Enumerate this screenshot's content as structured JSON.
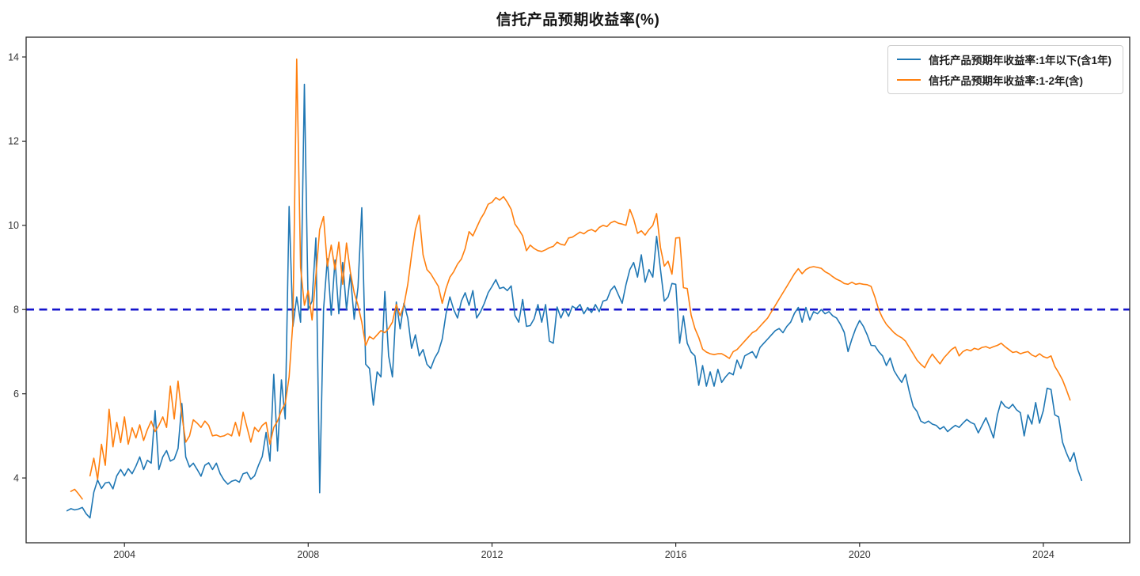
{
  "chart_data": {
    "type": "line",
    "title": "信托产品预期收益率(%)",
    "xlabel": "",
    "ylabel": "",
    "x_domain": [
      2001.86,
      2025.88
    ],
    "y_domain": [
      2.46,
      14.47
    ],
    "x_ticks": [
      2004,
      2008,
      2012,
      2016,
      2020,
      2024
    ],
    "y_ticks": [
      4,
      6,
      8,
      10,
      12,
      14
    ],
    "grid": false,
    "legend_position": "upper right",
    "frame_color": "#2a2a2a",
    "tick_label_color": "#333333",
    "hline": {
      "y": 8.0,
      "color": "#1414cc",
      "dash": [
        10,
        6.5
      ],
      "width": 2.6
    },
    "series": [
      {
        "name": "信托产品预期年收益率:1年以下(含1年)",
        "color": "#1f77b4",
        "width": 1.6,
        "segments": [
          {
            "x0": 2002.75,
            "step_years": 0.08333,
            "values": [
              3.22,
              3.27,
              3.24,
              3.26,
              3.3,
              3.15,
              3.05,
              3.66,
              3.95,
              3.75,
              3.88,
              3.9,
              3.74,
              4.05,
              4.2,
              4.05,
              4.22,
              4.1,
              4.28,
              4.5,
              4.2,
              4.42,
              4.35,
              5.6,
              4.2,
              4.5,
              4.65,
              4.4,
              4.45,
              4.7,
              5.77,
              4.5,
              4.26,
              4.35,
              4.2,
              4.04,
              4.3,
              4.36,
              4.2,
              4.35,
              4.1,
              3.95,
              3.85,
              3.92,
              3.95,
              3.9,
              4.1,
              4.13,
              3.97,
              4.05,
              4.3,
              4.51,
              5.08,
              4.4,
              6.46,
              4.64,
              6.33,
              5.4,
              10.45,
              7.6,
              8.3,
              7.7,
              13.35,
              8.0,
              8.2,
              9.7,
              3.65,
              8.0,
              9.21,
              7.87,
              9.18,
              7.9,
              9.12,
              8.0,
              8.84,
              7.77,
              8.53,
              10.42,
              6.7,
              6.6,
              5.73,
              6.52,
              6.4,
              8.43,
              6.9,
              6.4,
              8.18,
              7.54,
              8.15,
              7.8,
              7.08,
              7.4,
              6.9,
              7.05,
              6.7,
              6.6,
              6.84,
              7.0,
              7.3,
              7.9,
              8.3,
              8.0,
              7.8,
              8.2,
              8.4,
              8.1,
              8.45,
              7.8,
              7.95,
              8.15,
              8.4,
              8.55,
              8.71,
              8.5,
              8.53,
              8.45,
              8.56,
              7.86,
              7.7,
              8.24,
              7.6,
              7.62,
              7.78,
              8.12,
              7.7,
              8.12,
              7.25,
              7.2,
              8.06,
              7.8,
              8.02,
              7.84,
              8.08,
              8.02,
              8.12,
              7.9,
              8.05,
              7.93,
              8.12,
              7.95,
              8.2,
              8.23,
              8.46,
              8.56,
              8.35,
              8.15,
              8.59,
              8.95,
              9.12,
              8.77,
              9.3,
              8.65,
              8.95,
              8.77,
              9.74,
              8.95,
              8.2,
              8.3,
              8.62,
              8.6,
              7.2,
              7.85,
              7.2,
              6.99,
              6.9,
              6.2,
              6.67,
              6.18,
              6.52,
              6.18,
              6.58,
              6.27,
              6.4,
              6.5,
              6.45,
              6.8,
              6.6,
              6.9,
              6.95,
              7.0,
              6.85,
              7.1,
              7.2,
              7.3,
              7.4,
              7.5,
              7.55,
              7.45,
              7.6,
              7.7,
              7.91,
              8.05,
              7.7,
              8.05,
              7.75,
              7.95,
              7.9,
              8.0,
              7.9,
              7.95,
              7.85,
              7.8,
              7.65,
              7.46,
              7.0,
              7.3,
              7.55,
              7.74,
              7.6,
              7.4,
              7.15,
              7.14,
              7.0,
              6.9,
              6.67,
              6.85,
              6.55,
              6.4,
              6.27,
              6.46,
              6.05,
              5.7,
              5.58,
              5.35,
              5.3,
              5.35,
              5.28,
              5.25,
              5.16,
              5.22,
              5.1,
              5.18,
              5.25,
              5.2,
              5.3,
              5.39,
              5.32,
              5.28,
              5.07,
              5.25,
              5.43,
              5.2,
              4.95,
              5.5,
              5.82,
              5.7,
              5.65,
              5.75,
              5.62,
              5.55,
              5.0,
              5.5,
              5.28,
              5.79,
              5.3,
              5.6,
              6.13,
              6.1,
              5.5,
              5.45,
              4.85,
              4.6,
              4.39,
              4.6,
              4.2,
              3.94
            ]
          }
        ]
      },
      {
        "name": "信托产品预期年收益率:1-2年(含)",
        "color": "#ff7f0e",
        "width": 1.6,
        "segments": [
          {
            "x0": 2002.8333,
            "step_years": 0.08333,
            "values": [
              3.68,
              3.73,
              3.62,
              3.5
            ]
          },
          {
            "x0": 2003.25,
            "step_years": 0.08333,
            "values": [
              4.05,
              4.47,
              3.97,
              4.8,
              4.3,
              5.63,
              4.74,
              5.32,
              4.84,
              5.45,
              4.8,
              5.19,
              4.95,
              5.26,
              4.89,
              5.15,
              5.35,
              5.1,
              5.25,
              5.45,
              5.2,
              6.18,
              5.4,
              6.3,
              5.5,
              4.85,
              5.0,
              5.38,
              5.3,
              5.2,
              5.35,
              5.25,
              5.0,
              5.02,
              4.98,
              5.0,
              5.05,
              5.0,
              5.32,
              5.0,
              5.56,
              5.2,
              4.85,
              5.2,
              5.1,
              5.25,
              5.32,
              4.8,
              5.2,
              5.35,
              5.6,
              5.77,
              6.4,
              7.7,
              13.95,
              9.0,
              8.1,
              8.45,
              7.75,
              8.8,
              9.9,
              10.21,
              9.03,
              9.53,
              8.95,
              9.6,
              8.6,
              9.58,
              8.9,
              8.4,
              8.1,
              7.7,
              7.15,
              7.36,
              7.3,
              7.4,
              7.5,
              7.45,
              7.55,
              7.7,
              8.12,
              7.85,
              8.1,
              8.6,
              9.3,
              9.9,
              10.24,
              9.3,
              8.95,
              8.85,
              8.7,
              8.55,
              8.15,
              8.5,
              8.77,
              8.9,
              9.08,
              9.2,
              9.45,
              9.85,
              9.75,
              9.95,
              10.15,
              10.3,
              10.5,
              10.55,
              10.66,
              10.6,
              10.68,
              10.55,
              10.38,
              10.03,
              9.9,
              9.75,
              9.4,
              9.53,
              9.45,
              9.4,
              9.38,
              9.42,
              9.47,
              9.5,
              9.6,
              9.55,
              9.53,
              9.7,
              9.72,
              9.78,
              9.84,
              9.8,
              9.87,
              9.9,
              9.85,
              9.95,
              10.0,
              9.97,
              10.06,
              10.1,
              10.05,
              10.03,
              10.0,
              10.38,
              10.15,
              9.81,
              9.87,
              9.77,
              9.9,
              10.0,
              10.28,
              9.47,
              9.03,
              9.15,
              8.84,
              9.7,
              9.71,
              8.52,
              8.5,
              7.87,
              7.55,
              7.34,
              7.06,
              6.99,
              6.95,
              6.93,
              6.95,
              6.95,
              6.9,
              6.84,
              7.0,
              7.05,
              7.15,
              7.25,
              7.35,
              7.45,
              7.5,
              7.6,
              7.7,
              7.8,
              7.95,
              8.1,
              8.25,
              8.4,
              8.55,
              8.7,
              8.85,
              8.97,
              8.85,
              8.95,
              9.0,
              9.02,
              9.0,
              8.98,
              8.9,
              8.85,
              8.78,
              8.72,
              8.68,
              8.62,
              8.6,
              8.65,
              8.6,
              8.62,
              8.6,
              8.59,
              8.55,
              8.3,
              8.0,
              7.8,
              7.65,
              7.55,
              7.45,
              7.38,
              7.33,
              7.25,
              7.1,
              6.95,
              6.8,
              6.7,
              6.62,
              6.8,
              6.94,
              6.82,
              6.71,
              6.85,
              6.95,
              7.05,
              7.11,
              6.9,
              7.0,
              7.05,
              7.02,
              7.08,
              7.05,
              7.1,
              7.12,
              7.08,
              7.12,
              7.15,
              7.2,
              7.12,
              7.05,
              6.98,
              7.0,
              6.95,
              6.98,
              7.0,
              6.92,
              6.88,
              6.95,
              6.88,
              6.85,
              6.9,
              6.65,
              6.5,
              6.33,
              6.1,
              5.85
            ]
          }
        ]
      }
    ]
  }
}
